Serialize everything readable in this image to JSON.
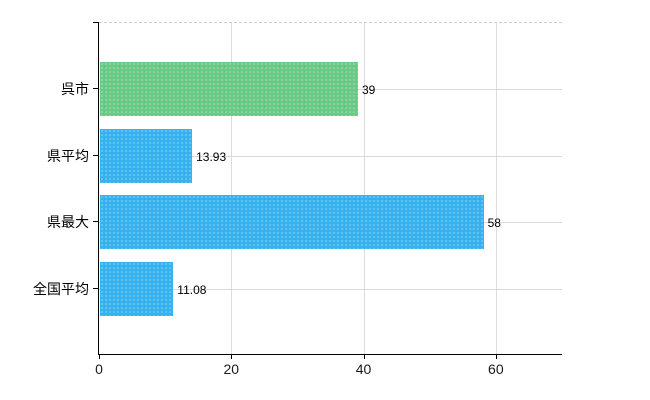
{
  "chart_data": {
    "type": "bar",
    "orientation": "horizontal",
    "title": "",
    "categories": [
      "呉市",
      "県平均",
      "県最大",
      "全国平均"
    ],
    "values": [
      39,
      13.93,
      58,
      11.08
    ],
    "value_labels": [
      "39",
      "13.93",
      "58",
      "11.08"
    ],
    "series": [
      {
        "name": "値",
        "values": [
          39,
          13.93,
          58,
          11.08
        ]
      }
    ],
    "bar_colors": [
      "#68ca84",
      "#36b2ee",
      "#36b2ee",
      "#36b2ee"
    ],
    "x_ticks": [
      0,
      20,
      40,
      60
    ],
    "x_tick_labels": [
      "0",
      "20",
      "40",
      "60"
    ],
    "xlim": [
      0,
      70
    ],
    "xlabel": "",
    "ylabel": "",
    "grid": true,
    "legend_position": "none"
  },
  "colors": {
    "bar_green": "#68ca84",
    "bar_blue": "#36b2ee",
    "axis": "#000000",
    "horizontal_gridline": "#d7dcd2",
    "vertical_gridline": "#dedcd8",
    "plot_top_dashed": "#cfcec7",
    "background": "#ffffff",
    "label_text": "#000000"
  }
}
